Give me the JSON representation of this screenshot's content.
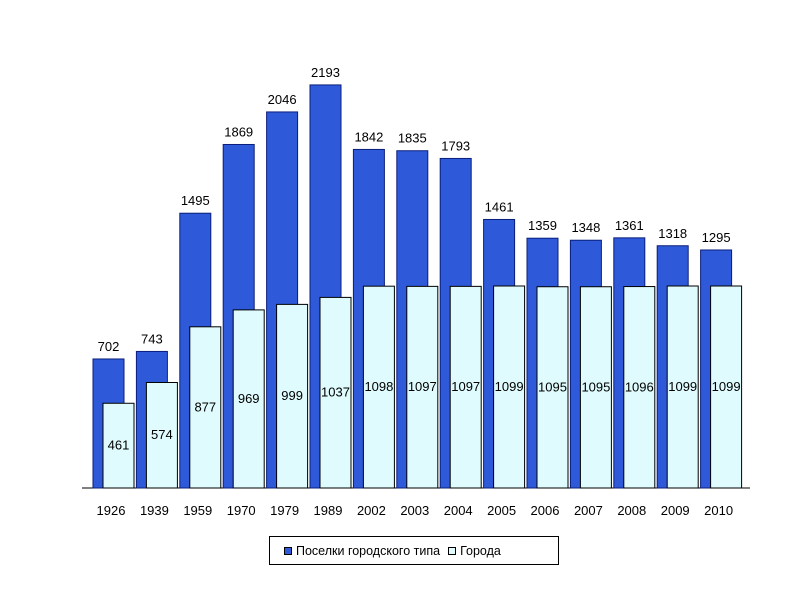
{
  "chart_data": {
    "type": "bar",
    "categories": [
      "1926",
      "1939",
      "1959",
      "1970",
      "1979",
      "1989",
      "2002",
      "2003",
      "2004",
      "2005",
      "2006",
      "2007",
      "2008",
      "2009",
      "2010"
    ],
    "series": [
      {
        "name": "Поселки городского типа",
        "color": "#2e5ad9",
        "values": [
          702,
          743,
          1495,
          1869,
          2046,
          2193,
          1842,
          1835,
          1793,
          1461,
          1359,
          1348,
          1361,
          1318,
          1295
        ]
      },
      {
        "name": "Города",
        "color": "#dffbfd",
        "values": [
          461,
          574,
          877,
          969,
          999,
          1037,
          1098,
          1097,
          1097,
          1099,
          1095,
          1095,
          1096,
          1099,
          1099
        ]
      }
    ],
    "legend_position": "bottom",
    "grid": false
  }
}
